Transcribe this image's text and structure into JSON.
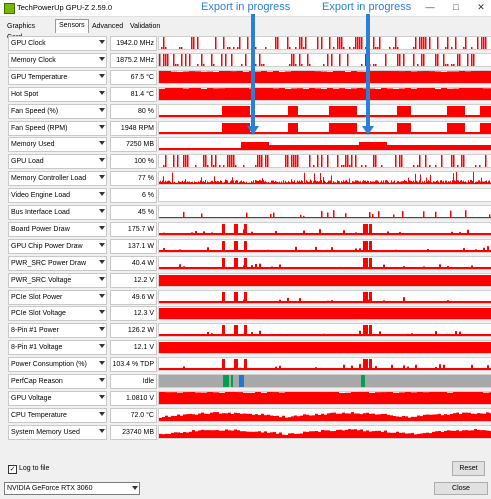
{
  "window": {
    "title": "TechPowerUp GPU-Z 2.59.0",
    "controls": [
      "—",
      "□",
      "✕"
    ]
  },
  "tabs": [
    {
      "label": "Graphics Card",
      "active": false
    },
    {
      "label": "Sensors",
      "active": true
    },
    {
      "label": "Advanced",
      "active": false
    },
    {
      "label": "Validation",
      "active": false
    }
  ],
  "annotations": [
    "Export in progress",
    "Export in progress"
  ],
  "sensors": [
    {
      "label": "GPU Clock",
      "value": "1942.0 MHz",
      "kind": "spiky"
    },
    {
      "label": "Memory Clock",
      "value": "1875.2 MHz",
      "kind": "spiky"
    },
    {
      "label": "GPU Temperature",
      "value": "67.5 °C",
      "kind": "mostly-full"
    },
    {
      "label": "Hot Spot",
      "value": "81.4 °C",
      "kind": "mostly-full"
    },
    {
      "label": "Fan Speed (%)",
      "value": "80 %",
      "kind": "blocks"
    },
    {
      "label": "Fan Speed (RPM)",
      "value": "1948 RPM",
      "kind": "blocks"
    },
    {
      "label": "Memory Used",
      "value": "7250 MB",
      "kind": "memory"
    },
    {
      "label": "GPU Load",
      "value": "100 %",
      "kind": "spiky"
    },
    {
      "label": "Memory Controller Load",
      "value": "77 %",
      "kind": "noise"
    },
    {
      "label": "Video Engine Load",
      "value": "6 %",
      "kind": "empty"
    },
    {
      "label": "Bus Interface Load",
      "value": "45 %",
      "kind": "sparse"
    },
    {
      "label": "Board Power Draw",
      "value": "175.7 W",
      "kind": "power"
    },
    {
      "label": "GPU Chip Power Draw",
      "value": "137.1 W",
      "kind": "power"
    },
    {
      "label": "PWR_SRC Power Draw",
      "value": "40.4 W",
      "kind": "power"
    },
    {
      "label": "PWR_SRC Voltage",
      "value": "12.2 V",
      "kind": "full"
    },
    {
      "label": "PCIe Slot Power",
      "value": "49.6 W",
      "kind": "power"
    },
    {
      "label": "PCIe Slot Voltage",
      "value": "12.3 V",
      "kind": "full"
    },
    {
      "label": "8-Pin #1 Power",
      "value": "126.2 W",
      "kind": "power"
    },
    {
      "label": "8-Pin #1 Voltage",
      "value": "12.1 V",
      "kind": "full"
    },
    {
      "label": "Power Consumption (%)",
      "value": "103.4 % TDP",
      "kind": "power"
    },
    {
      "label": "PerfCap Reason",
      "value": "Idle",
      "kind": "perfcap"
    },
    {
      "label": "GPU Voltage",
      "value": "1.0810 V",
      "kind": "mostly-full"
    },
    {
      "label": "CPU Temperature",
      "value": "72.0 °C",
      "kind": "wave"
    },
    {
      "label": "System Memory Used",
      "value": "23740 MB",
      "kind": "wave"
    }
  ],
  "footer": {
    "log_label": "Log to file",
    "log_checked": true,
    "reset_label": "Reset",
    "gpu_select": "NVIDIA GeForce RTX 3060",
    "close_label": "Close"
  },
  "colors": {
    "graph": "#ff0000",
    "perfcap_gray": "#a8a8a8",
    "perfcap_green": "#00a050",
    "perfcap_blue": "#1e78d2",
    "annotation": "#2a7fd6"
  }
}
